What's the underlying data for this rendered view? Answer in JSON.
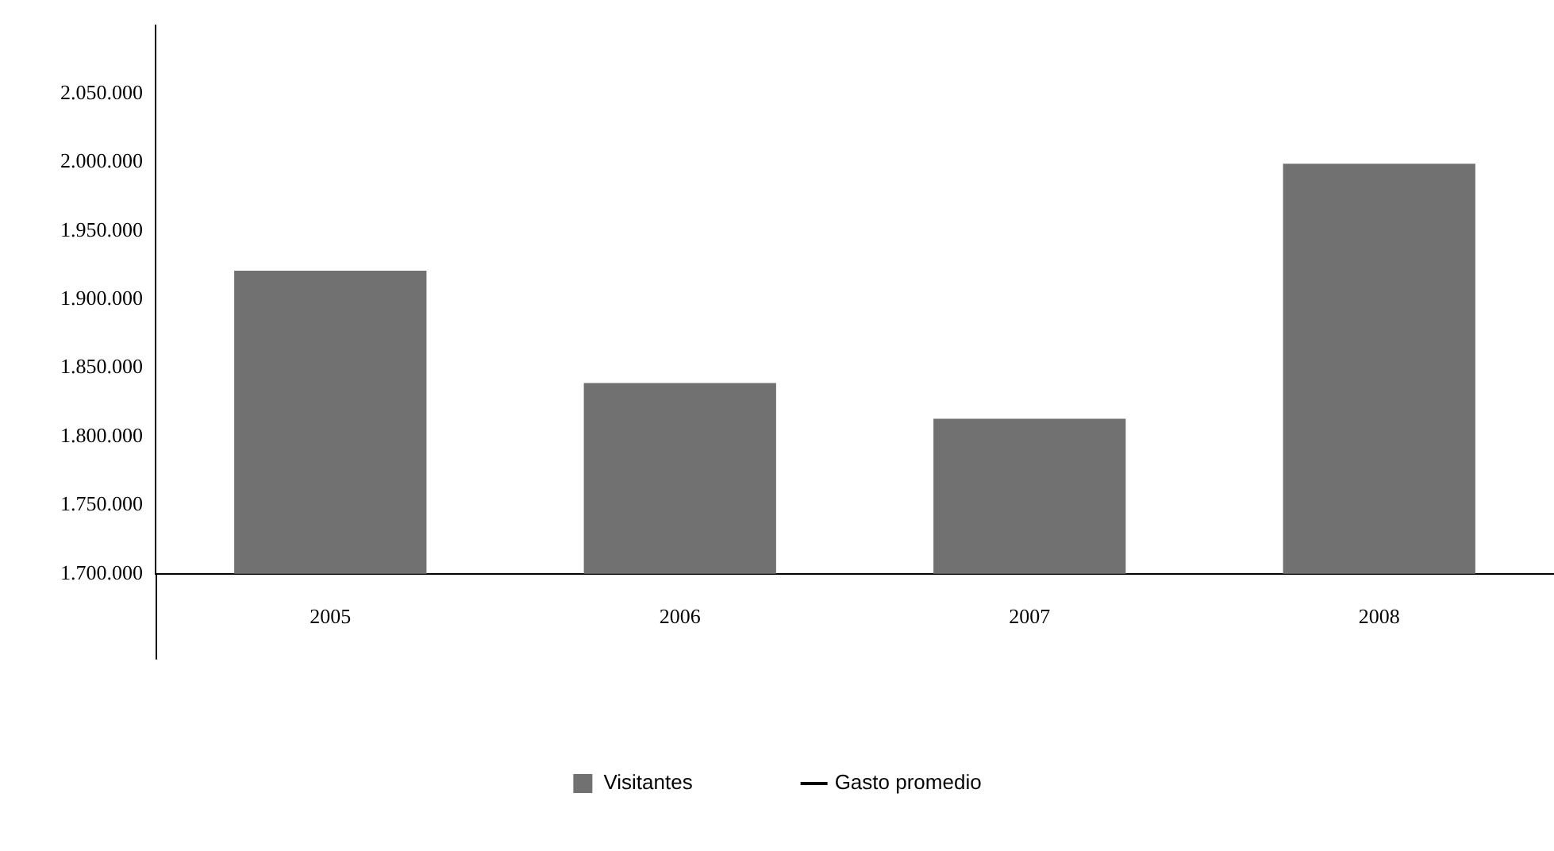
{
  "chart_data": {
    "type": "bar",
    "categories": [
      "2005",
      "2006",
      "2007",
      "2008"
    ],
    "series": [
      {
        "name": "Visitantes",
        "color": "#717171",
        "values": [
          1921000,
          1839000,
          1813000,
          1999000
        ]
      },
      {
        "name": "Gasto promedio",
        "type": "line",
        "color": "#000000",
        "values": [
          null,
          null,
          null,
          null
        ]
      }
    ],
    "ylim": [
      1700000,
      2100000
    ],
    "yticks": [
      {
        "value": 1700000,
        "label": "1.700.000"
      },
      {
        "value": 1750000,
        "label": "1.750.000"
      },
      {
        "value": 1800000,
        "label": "1.800.000"
      },
      {
        "value": 1850000,
        "label": "1.850.000"
      },
      {
        "value": 1900000,
        "label": "1.900.000"
      },
      {
        "value": 1950000,
        "label": "1.950.000"
      },
      {
        "value": 2000000,
        "label": "2.000.000"
      },
      {
        "value": 2050000,
        "label": "2.050.000"
      }
    ],
    "grid": false,
    "legend": "bottom"
  }
}
